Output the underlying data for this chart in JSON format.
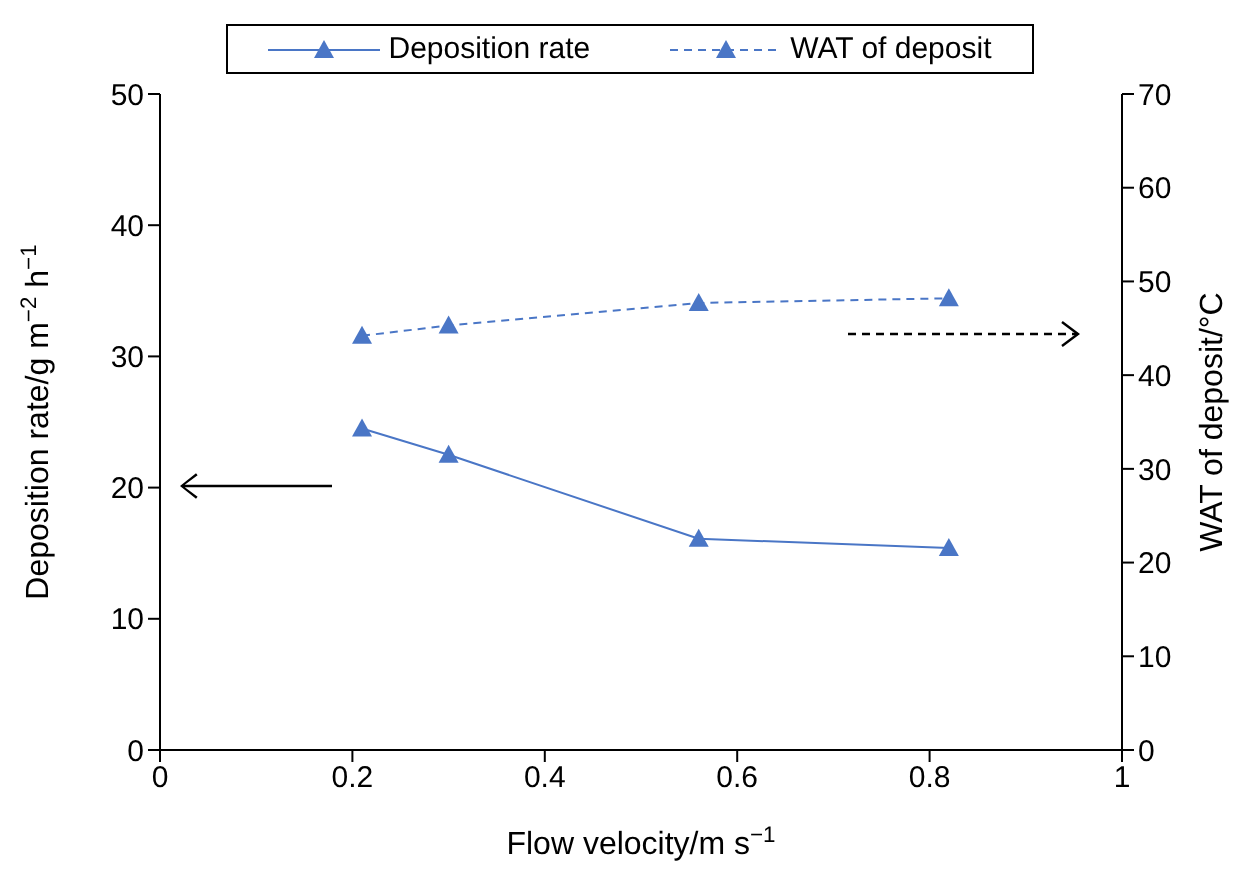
{
  "chart_data": {
    "type": "line",
    "xlabel": "Flow velocity/m s$^{−1}$",
    "ylabel": "Deposition rate/g m$^{−2}$ h$^{−1}$",
    "y2label": "WAT of deposit/°C",
    "x": [
      0.21,
      0.3,
      0.56,
      0.82
    ],
    "series": [
      {
        "name": "Deposition rate",
        "color": "#4a76c6",
        "values": [
          24.5,
          22.5,
          16.1,
          15.4
        ],
        "line_style": "solid"
      },
      {
        "name": "WAT of deposit",
        "color": "#4a76c6",
        "values": [
          44.2,
          45.3,
          47.7,
          48.2
        ],
        "line_style": "dashed",
        "axis": "y2"
      }
    ],
    "xlim": [
      0,
      1
    ],
    "xticks": [
      0,
      0.2,
      0.4,
      0.6,
      0.8,
      1
    ],
    "ylim": [
      0,
      50
    ],
    "yticks": [
      0,
      10,
      20,
      30,
      40,
      50
    ],
    "y2lim": [
      0,
      70
    ],
    "y2ticks": [
      0,
      10,
      20,
      30,
      40,
      50,
      60,
      70
    ],
    "marker": "triangle",
    "grid": false,
    "legend": "top"
  }
}
